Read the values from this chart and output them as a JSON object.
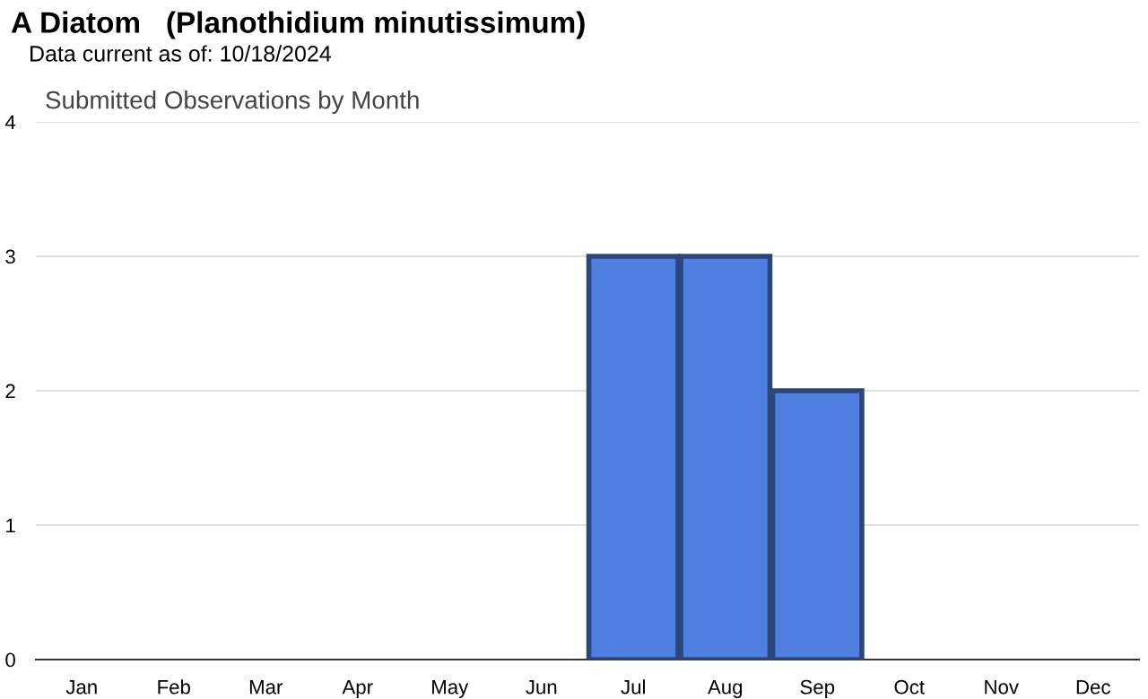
{
  "chart_data": {
    "type": "bar",
    "title": "A Diatom   (Planothidium minutissimum)",
    "subtitle": "Data current as of: 10/18/2024",
    "annotations": [
      "Submitted Observations by Month"
    ],
    "categories": [
      "Jan",
      "Feb",
      "Mar",
      "Apr",
      "May",
      "Jun",
      "Jul",
      "Aug",
      "Sep",
      "Oct",
      "Nov",
      "Dec"
    ],
    "values": [
      0,
      0,
      0,
      0,
      0,
      0,
      3,
      3,
      2,
      0,
      0,
      0
    ],
    "color": "#4f7fe0",
    "ylim": [
      0,
      4
    ],
    "yticks": [
      0,
      1,
      2,
      3,
      4
    ],
    "grid": "y",
    "legend": false
  }
}
